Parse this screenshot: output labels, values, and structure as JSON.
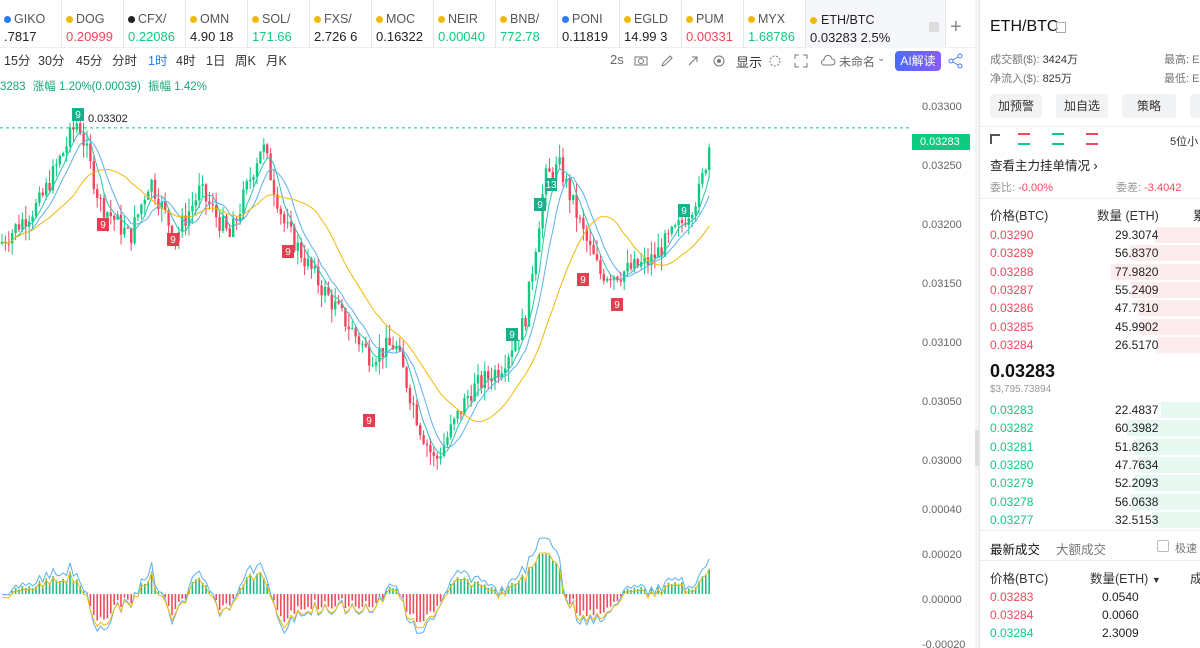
{
  "tickers": [
    {
      "name": "GIKO",
      "price": ".7817",
      "cls": "nt",
      "icon": "blue-logo-icon"
    },
    {
      "name": "DOG",
      "price": "0.20999",
      "cls": "dn",
      "icon": "dot-icon"
    },
    {
      "name": "CFX/",
      "price": "0.22086",
      "cls": "up",
      "icon": "cfx-logo-icon"
    },
    {
      "name": "OMN",
      "price": "4.90 18",
      "cls": "nt",
      "icon": "dot-icon"
    },
    {
      "name": "SOL/",
      "price": "171.66",
      "cls": "up",
      "icon": "dot-icon"
    },
    {
      "name": "FXS/",
      "price": "2.726 6",
      "cls": "nt",
      "icon": "dot-icon"
    },
    {
      "name": "MOC",
      "price": "0.16322",
      "cls": "nt",
      "icon": "dot-icon"
    },
    {
      "name": "NEIR",
      "price": "0.00040",
      "cls": "up",
      "icon": "dot-icon"
    },
    {
      "name": "BNB/",
      "price": "772.78",
      "cls": "up",
      "icon": "dot-icon"
    },
    {
      "name": "PONI",
      "price": "0.11819",
      "cls": "nt",
      "icon": "pon-logo-icon"
    },
    {
      "name": "EGLD",
      "price": "14.99 3",
      "cls": "nt",
      "icon": "dot-icon"
    },
    {
      "name": "PUM",
      "price": "0.00331",
      "cls": "dn",
      "icon": "dot-icon"
    },
    {
      "name": "MYX",
      "price": "1.68786",
      "cls": "up",
      "icon": "dot-icon"
    }
  ],
  "active_tab": {
    "name": "ETH/BTC",
    "price": "0.03283",
    "change": "2.5%"
  },
  "intervals": [
    "15分",
    "30分",
    "45分",
    "分时",
    "1时",
    "4时",
    "1日",
    "周K",
    "月K"
  ],
  "selected_interval": "1时",
  "toolbar": {
    "refresh": "2s",
    "display": "显示",
    "unnamed": "未命名",
    "ai": "AI解读"
  },
  "info_line": {
    "price": "3283",
    "change": "涨幅 1.20%(0.00039)",
    "amplitude": "振幅 1.42%"
  },
  "chart_data": {
    "type": "candlestick",
    "title": "ETH/BTC 1时",
    "ylim": [
      0.0298,
      0.0331
    ],
    "y_ticks": [
      "0.03300",
      "0.03250",
      "0.03200",
      "0.03150",
      "0.03100",
      "0.03050",
      "0.03000"
    ],
    "high_marker": "0.03302",
    "last_price": "0.03283",
    "td_marks": [
      "9",
      "9",
      "9",
      "9",
      "9",
      "9",
      "9",
      "13",
      "9"
    ],
    "macd": {
      "y_ticks": [
        "0.00040",
        "0.00020",
        "0.00000",
        "-0.00020"
      ]
    },
    "colors": {
      "up": "#0ecb81",
      "down": "#f6465d",
      "ma1": "#f0b90b",
      "ma2": "#2ec2b0",
      "ma3": "#5ab0f0"
    }
  },
  "right": {
    "pair": "ETH/BTC",
    "turnover_label": "成交额($):",
    "turnover": "3424万",
    "netflow_label": "净流入($):",
    "netflow": "825万",
    "high_label": "最高:",
    "high_val": "E",
    "low_label": "最低:",
    "low_val": "E",
    "buttons": [
      "加预警",
      "加自选",
      "策略"
    ],
    "depth_label": "5位小",
    "order_link": "查看主力挂单情况",
    "ratio_label": "委比:",
    "ratio": "-0.00%",
    "diff_label": "委差:",
    "diff": "-3.4042",
    "col_price": "价格(BTC)",
    "col_qty": "数量 (ETH)",
    "col_more": "累",
    "asks": [
      [
        "0.03290",
        "29.3074"
      ],
      [
        "0.03289",
        "56.8370"
      ],
      [
        "0.03288",
        "77.9820"
      ],
      [
        "0.03287",
        "55.2409"
      ],
      [
        "0.03286",
        "47.7310"
      ],
      [
        "0.03285",
        "45.9902"
      ],
      [
        "0.03284",
        "26.5170"
      ]
    ],
    "mid_price": "0.03283",
    "mid_usd": "$3,795.73894",
    "bids": [
      [
        "0.03283",
        "22.4837"
      ],
      [
        "0.03282",
        "60.3982"
      ],
      [
        "0.03281",
        "51.8263"
      ],
      [
        "0.03280",
        "47.7634"
      ],
      [
        "0.03279",
        "52.2093"
      ],
      [
        "0.03278",
        "56.0638"
      ],
      [
        "0.03277",
        "32.5153"
      ]
    ],
    "trades_tab": "最新成交",
    "big_tab": "大额成交",
    "fast_label": "极速",
    "trade_col_price": "价格(BTC)",
    "trade_col_qty": "数量(ETH)",
    "trade_col_more": "成",
    "trades": [
      [
        "0.03283",
        "0.0540",
        "dn"
      ],
      [
        "0.03284",
        "0.0060",
        "dn"
      ],
      [
        "0.03284",
        "2.3009",
        "up"
      ]
    ]
  }
}
